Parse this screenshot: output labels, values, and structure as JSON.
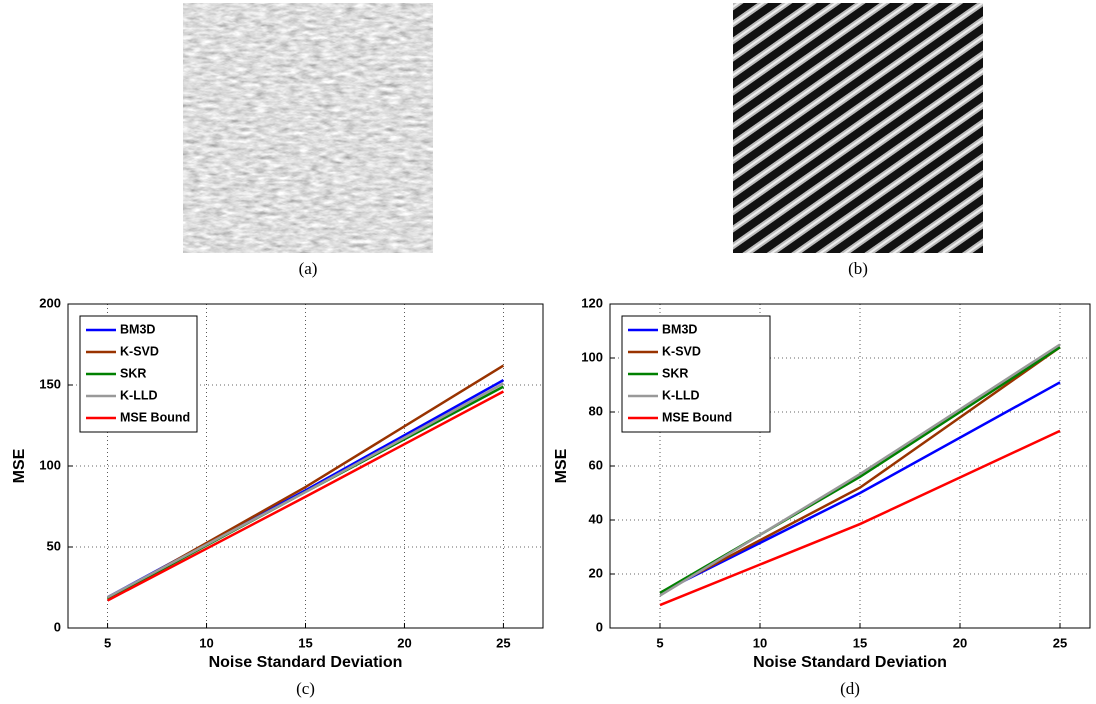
{
  "figures": [
    {
      "caption": "(a)"
    },
    {
      "caption": "(b)"
    }
  ],
  "chart_data": [
    {
      "type": "line",
      "caption": "(c)",
      "xlabel": "Noise Standard Deviation",
      "ylabel": "MSE",
      "x": [
        5,
        15,
        25
      ],
      "xlim": [
        3,
        27
      ],
      "xticks": [
        5,
        10,
        15,
        20,
        25
      ],
      "ylim": [
        0,
        200
      ],
      "yticks": [
        0,
        50,
        100,
        150,
        200
      ],
      "grid": true,
      "legend": "upper left",
      "series": [
        {
          "name": "BM3D",
          "color": "#0000ff",
          "values": [
            19,
            85,
            153
          ]
        },
        {
          "name": "K-SVD",
          "color": "#993300",
          "values": [
            18,
            87,
            162
          ]
        },
        {
          "name": "SKR",
          "color": "#008000",
          "values": [
            18,
            84,
            149
          ]
        },
        {
          "name": "K-LLD",
          "color": "#999999",
          "values": [
            19,
            84,
            151
          ]
        },
        {
          "name": "MSE Bound",
          "color": "#ff0000",
          "values": [
            17,
            81,
            146
          ]
        }
      ]
    },
    {
      "type": "line",
      "caption": "(d)",
      "xlabel": "Noise Standard Deviation",
      "ylabel": "MSE",
      "x": [
        5,
        15,
        25
      ],
      "xlim": [
        2.5,
        26.5
      ],
      "xticks": [
        5,
        10,
        15,
        20,
        25
      ],
      "ylim": [
        0,
        120
      ],
      "yticks": [
        0,
        20,
        40,
        60,
        80,
        100,
        120
      ],
      "grid": true,
      "legend": "upper left",
      "series": [
        {
          "name": "BM3D",
          "color": "#0000ff",
          "values": [
            13,
            50,
            91
          ]
        },
        {
          "name": "K-SVD",
          "color": "#993300",
          "values": [
            13,
            52,
            104
          ]
        },
        {
          "name": "SKR",
          "color": "#008000",
          "values": [
            13,
            56,
            104
          ]
        },
        {
          "name": "K-LLD",
          "color": "#999999",
          "values": [
            12,
            57,
            105
          ]
        },
        {
          "name": "MSE Bound",
          "color": "#ff0000",
          "values": [
            8.5,
            38.5,
            73
          ]
        }
      ]
    }
  ]
}
